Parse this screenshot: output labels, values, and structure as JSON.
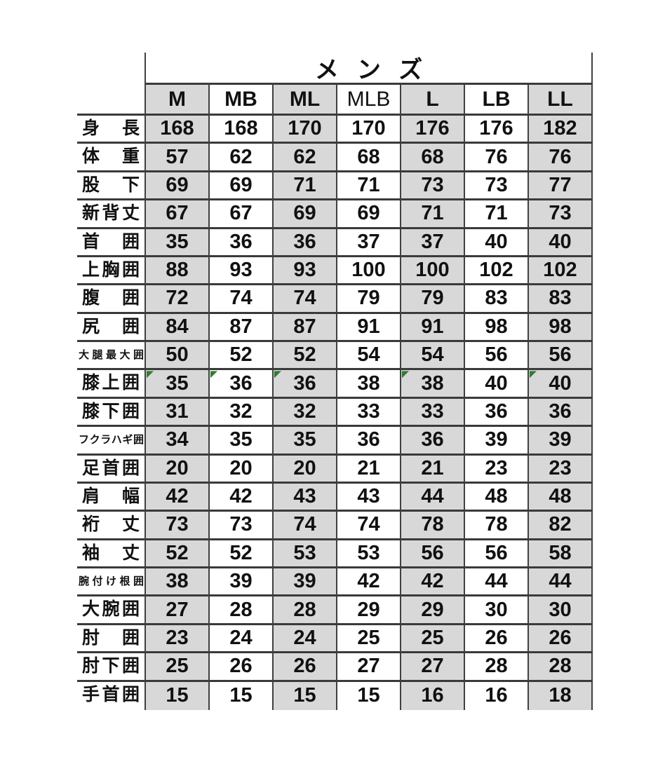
{
  "chart_data": {
    "type": "table",
    "title": "メンズ",
    "columns": [
      "M",
      "MB",
      "ML",
      "MLB",
      "L",
      "LB",
      "LL"
    ],
    "rows": [
      {
        "label": "身長",
        "values": [
          168,
          168,
          170,
          170,
          176,
          176,
          182
        ]
      },
      {
        "label": "体重",
        "values": [
          57,
          62,
          62,
          68,
          68,
          76,
          76
        ]
      },
      {
        "label": "股下",
        "values": [
          69,
          69,
          71,
          71,
          73,
          73,
          77
        ]
      },
      {
        "label": "新背丈",
        "values": [
          67,
          67,
          69,
          69,
          71,
          71,
          73
        ]
      },
      {
        "label": "首囲",
        "values": [
          35,
          36,
          36,
          37,
          37,
          40,
          40
        ]
      },
      {
        "label": "上胸囲",
        "values": [
          88,
          93,
          93,
          100,
          100,
          102,
          102
        ]
      },
      {
        "label": "腹囲",
        "values": [
          72,
          74,
          74,
          79,
          79,
          83,
          83
        ]
      },
      {
        "label": "尻囲",
        "values": [
          84,
          87,
          87,
          91,
          91,
          98,
          98
        ]
      },
      {
        "label": "大腿最大囲",
        "values": [
          50,
          52,
          52,
          54,
          54,
          56,
          56
        ]
      },
      {
        "label": "膝上囲",
        "values": [
          35,
          36,
          36,
          38,
          38,
          40,
          40
        ],
        "triangle_marker_cols": [
          0,
          1,
          2,
          4,
          6
        ]
      },
      {
        "label": "膝下囲",
        "values": [
          31,
          32,
          32,
          33,
          33,
          36,
          36
        ]
      },
      {
        "label": "フクラハギ囲",
        "values": [
          34,
          35,
          35,
          36,
          36,
          39,
          39
        ]
      },
      {
        "label": "足首囲",
        "values": [
          20,
          20,
          20,
          21,
          21,
          23,
          23
        ]
      },
      {
        "label": "肩幅",
        "values": [
          42,
          42,
          43,
          43,
          44,
          48,
          48
        ]
      },
      {
        "label": "裄丈",
        "values": [
          73,
          73,
          74,
          74,
          78,
          78,
          82
        ]
      },
      {
        "label": "袖丈",
        "values": [
          52,
          52,
          53,
          53,
          56,
          56,
          58
        ]
      },
      {
        "label": "腕付け根囲",
        "values": [
          38,
          39,
          39,
          42,
          42,
          44,
          44
        ]
      },
      {
        "label": "大腕囲",
        "values": [
          27,
          28,
          28,
          29,
          29,
          30,
          30
        ]
      },
      {
        "label": "肘囲",
        "values": [
          23,
          24,
          24,
          25,
          25,
          26,
          26
        ]
      },
      {
        "label": "肘下囲",
        "values": [
          25,
          26,
          26,
          27,
          27,
          28,
          28
        ]
      },
      {
        "label": "手首囲",
        "values": [
          15,
          15,
          15,
          15,
          16,
          16,
          18
        ]
      }
    ],
    "layout": {
      "shaded_columns": [
        0,
        2,
        4,
        6
      ],
      "grid": "on",
      "title_position": "top-center-over-data-columns"
    },
    "colors": {
      "shaded_column_fill": "#d8d8d8",
      "unshaded_column_fill": "#ffffff",
      "grid_line": "#404040",
      "text": "#111111",
      "triangle_marker_green": "#2e7d32"
    }
  }
}
